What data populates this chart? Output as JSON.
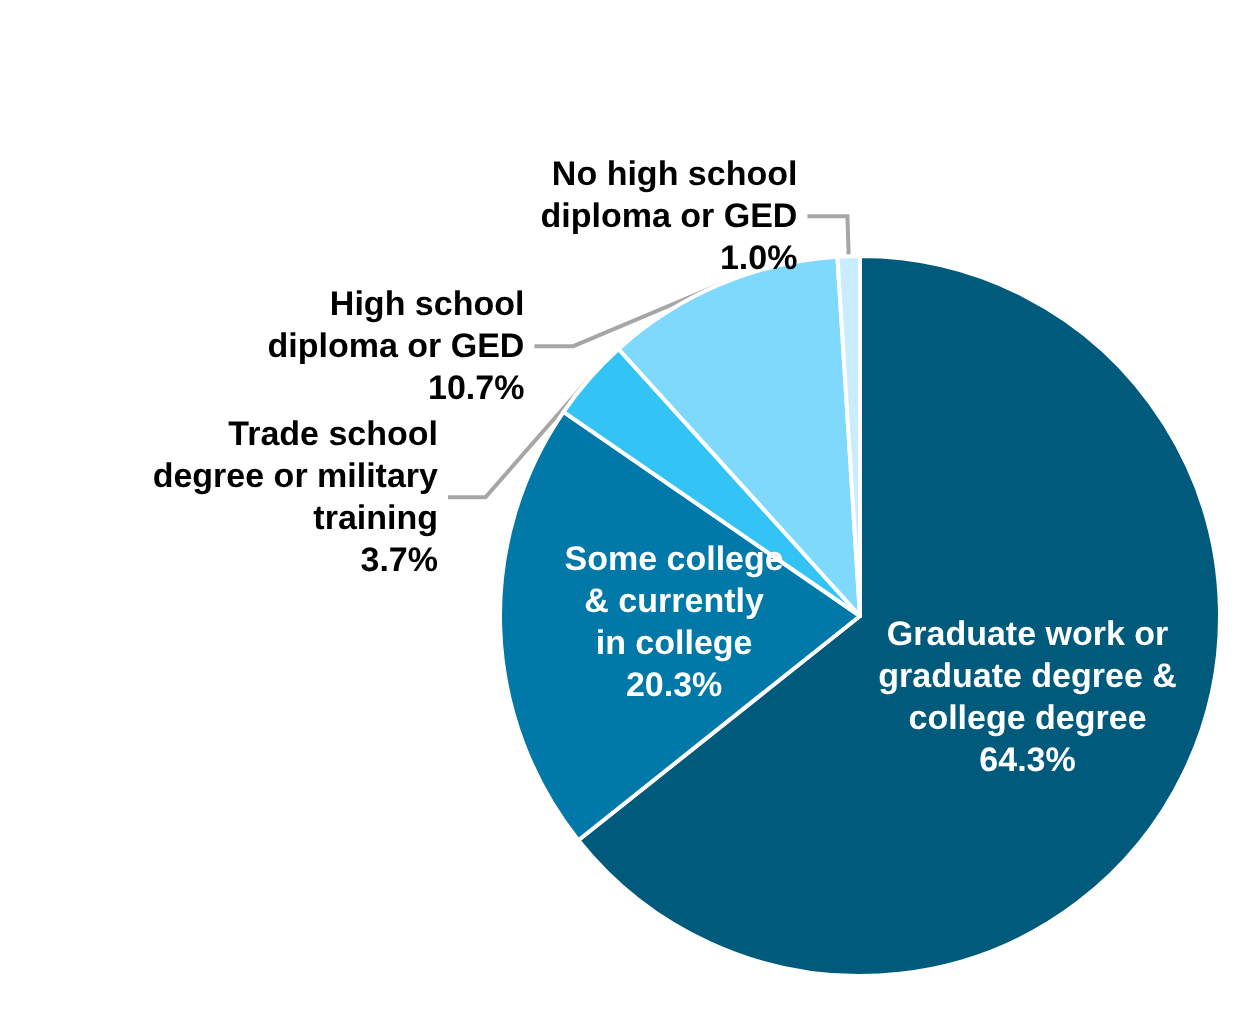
{
  "chart_data": {
    "type": "pie",
    "categories": [
      "Graduate work or graduate degree & college degree",
      "Some college & currently in college",
      "Trade school degree or military training",
      "High school diploma or GED",
      "No high school diploma or GED"
    ],
    "values": [
      64.3,
      20.3,
      3.7,
      10.7,
      1.0
    ],
    "colors": [
      "#005a7c",
      "#0079a8",
      "#33c3f5",
      "#7fd9fd",
      "#c9edff"
    ],
    "value_labels": [
      "64.3%",
      "20.3%",
      "3.7%",
      "10.7%",
      "1.0%"
    ],
    "legend": false
  }
}
